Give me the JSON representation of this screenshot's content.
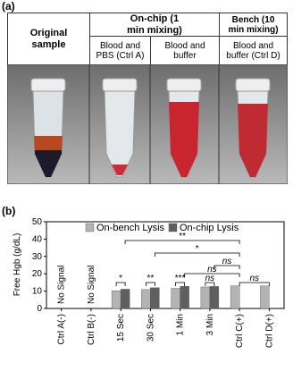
{
  "panel_a": {
    "label": "(a)",
    "headers": [
      "Original sample",
      "On-chip (1 min mixing)",
      "Bench (10 min mixing)"
    ],
    "subheaders": [
      "Blood and PBS (Ctrl A)",
      "Blood and buffer",
      "Blood and buffer (Ctrl D)"
    ]
  },
  "chart_data": {
    "type": "bar",
    "label": "(b)",
    "y_label": "Free Hgb (g/dL)",
    "categories": [
      "Ctrl A(-)",
      "Ctrl B(-)",
      "15 Sec",
      "30 Sec",
      "1 Min",
      "3 Min",
      "Ctrl C(+)",
      "Ctrl D(+)"
    ],
    "series": [
      {
        "name": "On-bench Lysis",
        "color": "#b3b3b3",
        "values": [
          null,
          null,
          10.2,
          10.9,
          11.6,
          12.4,
          13.0,
          13.0
        ]
      },
      {
        "name": "On-chip Lysis",
        "color": "#5f5f5f",
        "values": [
          null,
          null,
          11.1,
          12.0,
          12.8,
          12.7,
          null,
          null
        ]
      }
    ],
    "annotations": [
      "No Signal",
      "No Signal"
    ],
    "significance": [
      "*",
      "**",
      "***",
      "ns",
      "ns",
      "ns",
      "ns",
      "**",
      "*"
    ],
    "ylim": [
      0,
      50
    ],
    "yticks": [
      0,
      10,
      20,
      30,
      40,
      50
    ],
    "legend": "top"
  }
}
